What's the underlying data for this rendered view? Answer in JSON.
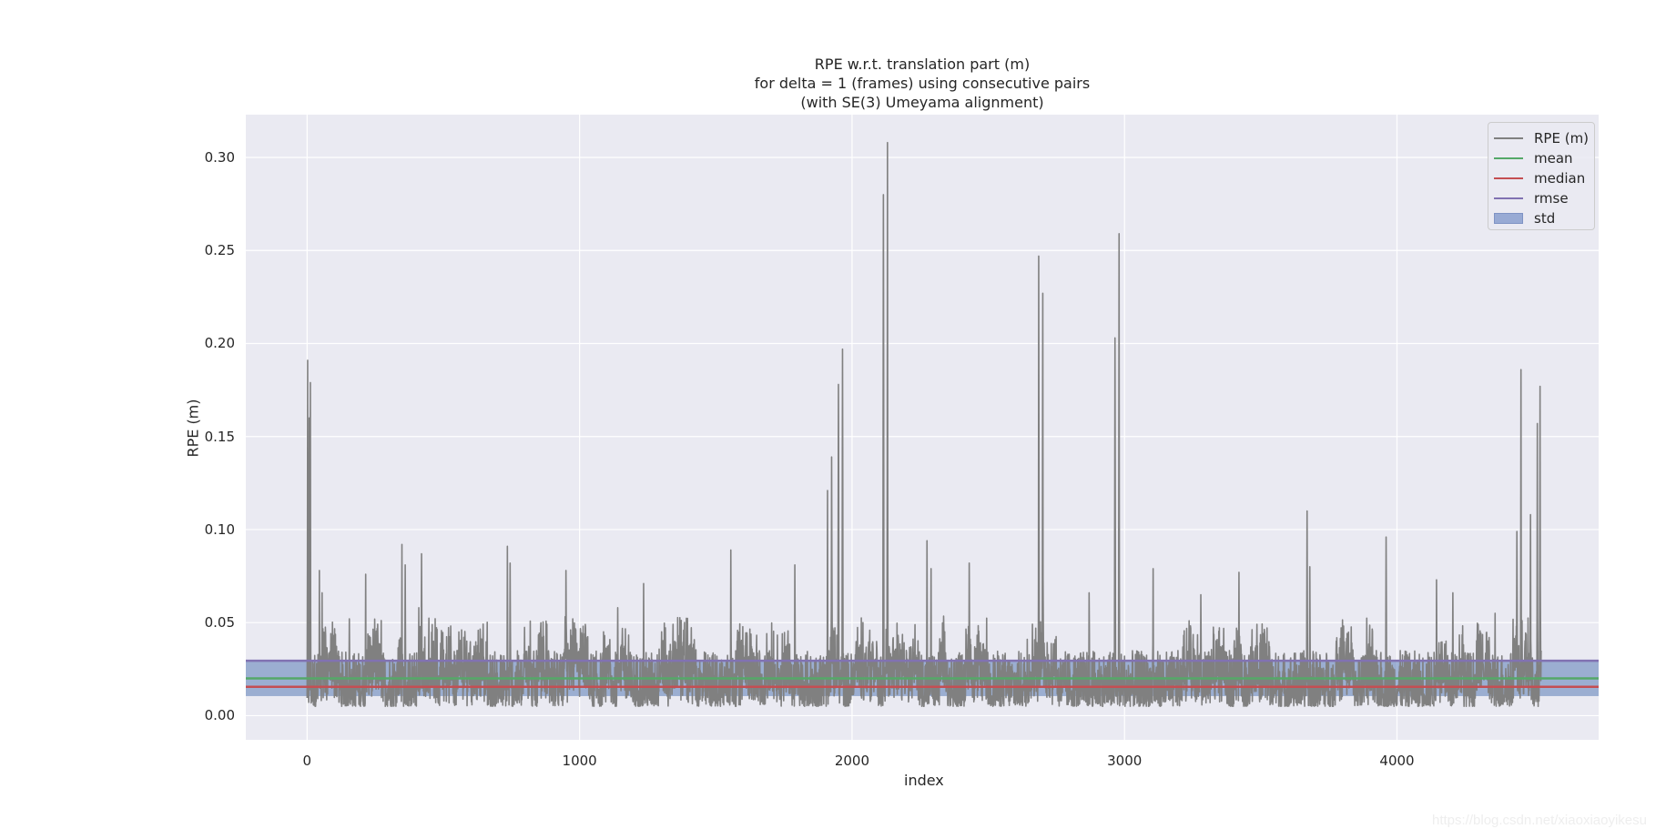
{
  "chart_data": {
    "type": "line",
    "title": "RPE w.r.t. translation part (m)",
    "subtitle_lines": [
      "for delta = 1 (frames) using consecutive pairs",
      "(with SE(3) Umeyama alignment)"
    ],
    "xlabel": "index",
    "ylabel": "RPE (m)",
    "xlim": [
      -225,
      4740
    ],
    "ylim": [
      -0.013,
      0.323
    ],
    "x_ticks": [
      0,
      1000,
      2000,
      3000,
      4000
    ],
    "x_tick_labels": [
      "0",
      "1000",
      "2000",
      "3000",
      "4000"
    ],
    "y_ticks": [
      0.0,
      0.05,
      0.1,
      0.15,
      0.2,
      0.25,
      0.3
    ],
    "y_tick_labels": [
      "0.00",
      "0.05",
      "0.10",
      "0.15",
      "0.20",
      "0.25",
      "0.30"
    ],
    "grid": true,
    "legend_position": "upper right",
    "n_points": 4530,
    "series": [
      {
        "name": "RPE (m)",
        "color": "#808080",
        "kind": "line",
        "baseline_range": [
          0.005,
          0.035
        ],
        "peaks": [
          {
            "x": 2,
            "y": 0.191
          },
          {
            "x": 12,
            "y": 0.179
          },
          {
            "x": 8,
            "y": 0.16
          },
          {
            "x": 45,
            "y": 0.078
          },
          {
            "x": 55,
            "y": 0.066
          },
          {
            "x": 155,
            "y": 0.052
          },
          {
            "x": 215,
            "y": 0.076
          },
          {
            "x": 348,
            "y": 0.092
          },
          {
            "x": 360,
            "y": 0.081
          },
          {
            "x": 420,
            "y": 0.087
          },
          {
            "x": 410,
            "y": 0.058
          },
          {
            "x": 735,
            "y": 0.091
          },
          {
            "x": 745,
            "y": 0.082
          },
          {
            "x": 950,
            "y": 0.078
          },
          {
            "x": 1140,
            "y": 0.058
          },
          {
            "x": 1235,
            "y": 0.071
          },
          {
            "x": 1555,
            "y": 0.089
          },
          {
            "x": 1790,
            "y": 0.081
          },
          {
            "x": 1910,
            "y": 0.121
          },
          {
            "x": 1925,
            "y": 0.139
          },
          {
            "x": 1950,
            "y": 0.178
          },
          {
            "x": 1965,
            "y": 0.197
          },
          {
            "x": 2040,
            "y": 0.05
          },
          {
            "x": 2115,
            "y": 0.28
          },
          {
            "x": 2130,
            "y": 0.308
          },
          {
            "x": 2275,
            "y": 0.094
          },
          {
            "x": 2290,
            "y": 0.079
          },
          {
            "x": 2430,
            "y": 0.082
          },
          {
            "x": 2685,
            "y": 0.247
          },
          {
            "x": 2700,
            "y": 0.227
          },
          {
            "x": 2870,
            "y": 0.066
          },
          {
            "x": 2965,
            "y": 0.203
          },
          {
            "x": 2980,
            "y": 0.259
          },
          {
            "x": 3105,
            "y": 0.079
          },
          {
            "x": 3280,
            "y": 0.065
          },
          {
            "x": 3420,
            "y": 0.077
          },
          {
            "x": 3670,
            "y": 0.11
          },
          {
            "x": 3680,
            "y": 0.08
          },
          {
            "x": 3960,
            "y": 0.096
          },
          {
            "x": 4145,
            "y": 0.073
          },
          {
            "x": 4205,
            "y": 0.066
          },
          {
            "x": 4360,
            "y": 0.055
          },
          {
            "x": 4440,
            "y": 0.099
          },
          {
            "x": 4455,
            "y": 0.186
          },
          {
            "x": 4490,
            "y": 0.108
          },
          {
            "x": 4515,
            "y": 0.157
          },
          {
            "x": 4525,
            "y": 0.177
          }
        ]
      },
      {
        "name": "mean",
        "color": "#55a868",
        "kind": "hline",
        "value": 0.02
      },
      {
        "name": "median",
        "color": "#c44e52",
        "kind": "hline",
        "value": 0.0155
      },
      {
        "name": "rmse",
        "color": "#8172b2",
        "kind": "hline",
        "value": 0.0295
      },
      {
        "name": "std",
        "color": "#4c72b0",
        "kind": "band",
        "alpha": 0.5,
        "lower": 0.0105,
        "upper": 0.03
      }
    ]
  },
  "legend": {
    "items": [
      {
        "label": "RPE (m)",
        "color": "#808080",
        "type": "line"
      },
      {
        "label": "mean",
        "color": "#55a868",
        "type": "line"
      },
      {
        "label": "median",
        "color": "#c44e52",
        "type": "line"
      },
      {
        "label": "rmse",
        "color": "#8172b2",
        "type": "line"
      },
      {
        "label": "std",
        "color": "#98aad4",
        "type": "patch"
      }
    ]
  },
  "style": {
    "axes_bg": "#eaeaf2",
    "grid_color": "#ffffff",
    "text_color": "#262626"
  },
  "watermark": "https://blog.csdn.net/xiaoxiaoyikesu"
}
